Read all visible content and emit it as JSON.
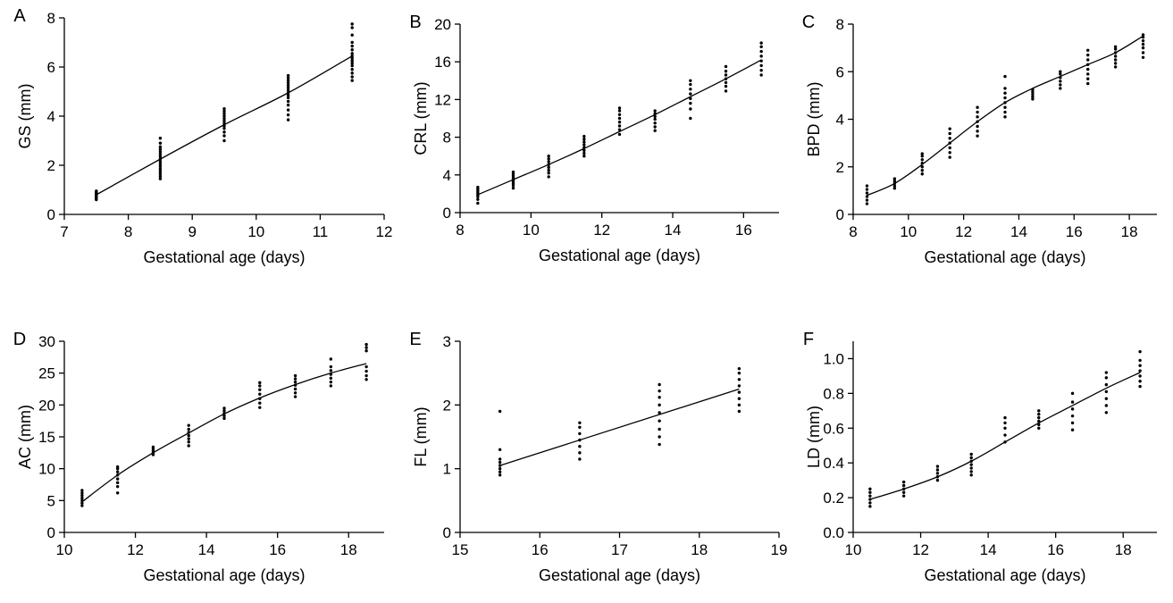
{
  "chart_data": [
    {
      "type": "scatter",
      "panel": "A",
      "xlabel": "Gestational age (days)",
      "ylabel": "GS (mm)",
      "xlim": [
        7,
        12
      ],
      "ylim": [
        0,
        8
      ],
      "xticks": [
        7,
        8,
        9,
        10,
        11,
        12
      ],
      "yticks": [
        0,
        2,
        4,
        6,
        8
      ],
      "ytick_decimals": 0,
      "groups": [
        {
          "x": 7.5,
          "y": [
            0.6,
            0.65,
            0.7,
            0.72,
            0.75,
            0.78,
            0.8,
            0.82,
            0.85,
            0.88,
            0.9,
            0.95
          ]
        },
        {
          "x": 8.5,
          "y": [
            1.45,
            1.55,
            1.65,
            1.75,
            1.85,
            1.95,
            2.05,
            2.15,
            2.25,
            2.35,
            2.45,
            2.55,
            2.65,
            2.75,
            2.9,
            3.1
          ]
        },
        {
          "x": 9.5,
          "y": [
            3.0,
            3.2,
            3.35,
            3.5,
            3.6,
            3.7,
            3.8,
            3.9,
            4.0,
            4.1,
            4.2,
            4.3
          ]
        },
        {
          "x": 10.5,
          "y": [
            3.85,
            4.05,
            4.25,
            4.45,
            4.6,
            4.75,
            4.85,
            4.95,
            5.05,
            5.15,
            5.25,
            5.35,
            5.45,
            5.55,
            5.65
          ]
        },
        {
          "x": 11.5,
          "y": [
            5.45,
            5.6,
            5.75,
            5.9,
            6.05,
            6.15,
            6.25,
            6.35,
            6.45,
            6.55,
            6.7,
            6.85,
            7.0,
            7.3,
            7.6,
            7.75
          ]
        }
      ],
      "fit": {
        "x": [
          7.5,
          8.5,
          9.5,
          10.5,
          11.5
        ],
        "y": [
          0.8,
          2.25,
          3.65,
          4.95,
          6.45
        ]
      }
    },
    {
      "type": "scatter",
      "panel": "B",
      "xlabel": "Gestational age (days)",
      "ylabel": "CRL (mm)",
      "xlim": [
        8,
        17
      ],
      "ylim": [
        0,
        20
      ],
      "xticks": [
        8,
        10,
        12,
        14,
        16
      ],
      "yticks": [
        0,
        4,
        8,
        12,
        16,
        20
      ],
      "ytick_decimals": 0,
      "groups": [
        {
          "x": 8.5,
          "y": [
            1.0,
            1.4,
            1.7,
            1.9,
            2.1,
            2.3,
            2.5,
            2.7
          ]
        },
        {
          "x": 9.5,
          "y": [
            2.6,
            2.9,
            3.1,
            3.3,
            3.5,
            3.7,
            3.9,
            4.1,
            4.3
          ]
        },
        {
          "x": 10.5,
          "y": [
            3.8,
            4.2,
            4.5,
            4.8,
            5.1,
            5.4,
            5.7,
            6.0
          ]
        },
        {
          "x": 11.5,
          "y": [
            6.0,
            6.3,
            6.6,
            6.9,
            7.2,
            7.5,
            7.8,
            8.1
          ]
        },
        {
          "x": 12.5,
          "y": [
            8.3,
            8.8,
            9.2,
            9.6,
            10.0,
            10.4,
            10.8,
            11.1
          ]
        },
        {
          "x": 13.5,
          "y": [
            8.7,
            9.1,
            9.5,
            9.9,
            10.2,
            10.5,
            10.8
          ]
        },
        {
          "x": 14.5,
          "y": [
            10.0,
            11.0,
            11.6,
            12.1,
            12.6,
            13.1,
            13.6,
            14.0
          ]
        },
        {
          "x": 15.5,
          "y": [
            12.9,
            13.4,
            13.8,
            14.2,
            14.6,
            15.0,
            15.5
          ]
        },
        {
          "x": 16.5,
          "y": [
            14.6,
            15.1,
            15.6,
            16.1,
            16.6,
            17.1,
            17.6,
            18.0
          ]
        }
      ],
      "fit": {
        "x": [
          8.5,
          9.5,
          10.5,
          11.5,
          12.5,
          13.5,
          14.5,
          15.5,
          16.5
        ],
        "y": [
          1.9,
          3.5,
          5.1,
          6.8,
          8.6,
          10.4,
          12.3,
          14.2,
          16.2
        ]
      }
    },
    {
      "type": "scatter",
      "panel": "C",
      "xlabel": "Gestational age (days)",
      "ylabel": "BPD (mm)",
      "xlim": [
        8,
        19
      ],
      "ylim": [
        0,
        8
      ],
      "xticks": [
        8,
        10,
        12,
        14,
        16,
        18
      ],
      "yticks": [
        0,
        2,
        4,
        6,
        8
      ],
      "ytick_decimals": 0,
      "groups": [
        {
          "x": 8.5,
          "y": [
            0.45,
            0.6,
            0.75,
            0.9,
            1.05,
            1.2
          ]
        },
        {
          "x": 9.5,
          "y": [
            1.1,
            1.2,
            1.3,
            1.4,
            1.5
          ]
        },
        {
          "x": 10.5,
          "y": [
            1.7,
            1.85,
            2.0,
            2.15,
            2.3,
            2.45,
            2.55
          ]
        },
        {
          "x": 11.5,
          "y": [
            2.4,
            2.6,
            2.8,
            3.0,
            3.2,
            3.4,
            3.6
          ]
        },
        {
          "x": 12.5,
          "y": [
            3.3,
            3.5,
            3.7,
            3.9,
            4.1,
            4.3,
            4.5
          ]
        },
        {
          "x": 13.5,
          "y": [
            4.1,
            4.3,
            4.5,
            4.7,
            4.9,
            5.1,
            5.3,
            5.8
          ]
        },
        {
          "x": 14.5,
          "y": [
            4.85,
            4.95,
            5.05,
            5.15,
            5.25
          ]
        },
        {
          "x": 15.5,
          "y": [
            5.3,
            5.45,
            5.6,
            5.75,
            5.9,
            6.0
          ]
        },
        {
          "x": 16.5,
          "y": [
            5.5,
            5.7,
            5.9,
            6.1,
            6.3,
            6.5,
            6.7,
            6.9
          ]
        },
        {
          "x": 17.5,
          "y": [
            6.2,
            6.35,
            6.5,
            6.65,
            6.8,
            6.95,
            7.05
          ]
        },
        {
          "x": 18.5,
          "y": [
            6.6,
            6.8,
            7.0,
            7.15,
            7.3,
            7.45,
            7.55
          ]
        }
      ],
      "fit": {
        "x": [
          8.5,
          9.5,
          10.5,
          11.5,
          12.5,
          13.5,
          14.5,
          15.5,
          16.5,
          17.5,
          18.5
        ],
        "y": [
          0.8,
          1.3,
          2.1,
          3.0,
          3.9,
          4.7,
          5.3,
          5.8,
          6.3,
          6.8,
          7.5
        ]
      }
    },
    {
      "type": "scatter",
      "panel": "D",
      "xlabel": "Gestational age (days)",
      "ylabel": "AC (mm)",
      "xlim": [
        10,
        19
      ],
      "ylim": [
        0,
        30
      ],
      "xticks": [
        10,
        12,
        14,
        16,
        18
      ],
      "yticks": [
        0,
        5,
        10,
        15,
        20,
        25,
        30
      ],
      "ytick_decimals": 0,
      "groups": [
        {
          "x": 10.5,
          "y": [
            4.2,
            4.6,
            5.0,
            5.4,
            5.8,
            6.2,
            6.6
          ]
        },
        {
          "x": 11.5,
          "y": [
            6.2,
            7.2,
            7.8,
            8.4,
            9.0,
            9.5,
            10.0,
            10.3
          ]
        },
        {
          "x": 12.5,
          "y": [
            12.2,
            12.5,
            12.8,
            13.1,
            13.4
          ]
        },
        {
          "x": 13.5,
          "y": [
            13.6,
            14.2,
            14.7,
            15.2,
            15.7,
            16.2,
            16.8
          ]
        },
        {
          "x": 14.5,
          "y": [
            17.9,
            18.3,
            18.7,
            19.1,
            19.5
          ]
        },
        {
          "x": 15.5,
          "y": [
            19.6,
            20.3,
            21.0,
            21.7,
            22.4,
            23.0,
            23.5
          ]
        },
        {
          "x": 16.5,
          "y": [
            21.3,
            21.9,
            22.5,
            23.1,
            23.6,
            24.1,
            24.6
          ]
        },
        {
          "x": 17.5,
          "y": [
            23.0,
            23.6,
            24.2,
            24.8,
            25.4,
            26.0,
            27.2
          ]
        },
        {
          "x": 18.5,
          "y": [
            24.0,
            24.6,
            25.3,
            26.0,
            28.5,
            29.0,
            29.5
          ]
        }
      ],
      "fit": {
        "x": [
          10.5,
          11.5,
          12.5,
          13.5,
          14.5,
          15.5,
          16.5,
          17.5,
          18.5
        ],
        "y": [
          4.8,
          9.0,
          12.5,
          15.6,
          18.6,
          21.1,
          23.2,
          25.0,
          26.5
        ]
      }
    },
    {
      "type": "scatter",
      "panel": "E",
      "xlabel": "Gestational age (days)",
      "ylabel": "FL (mm)",
      "xlim": [
        15,
        19
      ],
      "ylim": [
        0,
        3
      ],
      "xticks": [
        15,
        16,
        17,
        18,
        19
      ],
      "yticks": [
        0,
        1,
        2,
        3
      ],
      "ytick_decimals": 0,
      "groups": [
        {
          "x": 15.5,
          "y": [
            0.9,
            0.95,
            1.0,
            1.05,
            1.1,
            1.15,
            1.3,
            1.9
          ]
        },
        {
          "x": 16.5,
          "y": [
            1.15,
            1.25,
            1.35,
            1.45,
            1.55,
            1.65,
            1.72
          ]
        },
        {
          "x": 17.5,
          "y": [
            1.38,
            1.5,
            1.62,
            1.75,
            1.88,
            2.0,
            2.12,
            2.22,
            2.32
          ]
        },
        {
          "x": 18.5,
          "y": [
            1.9,
            2.0,
            2.1,
            2.2,
            2.3,
            2.4,
            2.5,
            2.57
          ]
        }
      ],
      "fit": {
        "x": [
          15.5,
          18.5
        ],
        "y": [
          1.05,
          2.25
        ]
      }
    },
    {
      "type": "scatter",
      "panel": "F",
      "xlabel": "Gestational age (days)",
      "ylabel": "LD (mm)",
      "xlim": [
        10,
        19
      ],
      "ylim": [
        0,
        1.1
      ],
      "xticks": [
        10,
        12,
        14,
        16,
        18
      ],
      "yticks": [
        0,
        0.2,
        0.4,
        0.6,
        0.8,
        1.0
      ],
      "ytick_decimals": 1,
      "groups": [
        {
          "x": 10.5,
          "y": [
            0.15,
            0.17,
            0.19,
            0.21,
            0.23,
            0.25
          ]
        },
        {
          "x": 11.5,
          "y": [
            0.21,
            0.23,
            0.25,
            0.27,
            0.29
          ]
        },
        {
          "x": 12.5,
          "y": [
            0.3,
            0.32,
            0.34,
            0.36,
            0.38
          ]
        },
        {
          "x": 13.5,
          "y": [
            0.33,
            0.35,
            0.37,
            0.39,
            0.41,
            0.43,
            0.45
          ]
        },
        {
          "x": 14.5,
          "y": [
            0.52,
            0.56,
            0.6,
            0.63,
            0.66
          ]
        },
        {
          "x": 15.5,
          "y": [
            0.6,
            0.62,
            0.64,
            0.66,
            0.68,
            0.7
          ]
        },
        {
          "x": 16.5,
          "y": [
            0.59,
            0.63,
            0.67,
            0.71,
            0.75,
            0.8
          ]
        },
        {
          "x": 17.5,
          "y": [
            0.69,
            0.73,
            0.77,
            0.81,
            0.85,
            0.89,
            0.92
          ]
        },
        {
          "x": 18.5,
          "y": [
            0.84,
            0.87,
            0.9,
            0.93,
            0.96,
            0.99,
            1.04
          ]
        }
      ],
      "fit": {
        "x": [
          10.5,
          11.5,
          12.5,
          13.5,
          14.5,
          15.5,
          16.5,
          17.5,
          18.5
        ],
        "y": [
          0.19,
          0.25,
          0.32,
          0.41,
          0.52,
          0.63,
          0.73,
          0.83,
          0.92
        ]
      }
    }
  ]
}
